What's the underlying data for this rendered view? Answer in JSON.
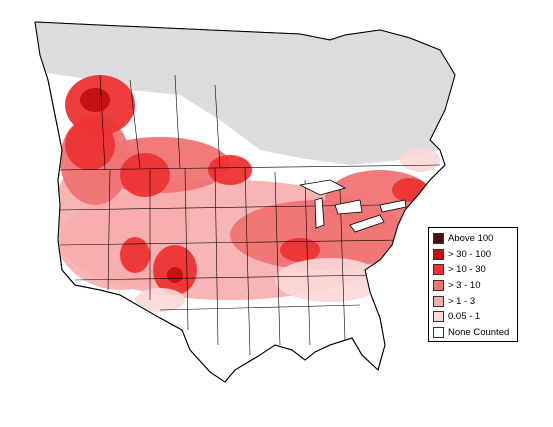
{
  "map": {
    "colors": {
      "background": "#ffffff",
      "no_data": "#dcdcdc",
      "borders": "#000000"
    }
  },
  "legend": {
    "items": [
      {
        "label": "Above 100",
        "color": "#4a0c0c"
      },
      {
        "label": "> 30 - 100",
        "color": "#c40e0e"
      },
      {
        "label": "> 10 - 30",
        "color": "#ee3333"
      },
      {
        "label": "> 3 - 10",
        "color": "#f07474"
      },
      {
        "label": "> 1 - 3",
        "color": "#f7adad"
      },
      {
        "label": "0.05 - 1",
        "color": "#fbd7d7"
      },
      {
        "label": "None Counted",
        "color": "#ffffff"
      }
    ]
  }
}
